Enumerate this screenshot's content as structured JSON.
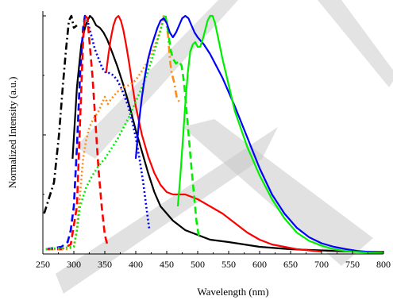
{
  "chart_data": {
    "type": "line",
    "xlabel": "Wavelength (nm)",
    "ylabel": "Normalized Intensity (a.u.)",
    "xlim": [
      250,
      800
    ],
    "ylim": [
      0,
      1.02
    ],
    "x_ticks": [
      250,
      300,
      350,
      400,
      450,
      500,
      550,
      600,
      650,
      700,
      750,
      800
    ],
    "y_ticks": [
      0,
      0.5,
      1.0
    ],
    "grid": false,
    "legend": "none",
    "series": [
      {
        "color": "#000000",
        "style": "dashdot",
        "x": [
          252,
          268,
          276,
          282,
          287,
          292,
          296,
          300,
          305
        ],
        "y": [
          0.17,
          0.3,
          0.5,
          0.7,
          0.85,
          0.98,
          1.0,
          0.95,
          0.96
        ]
      },
      {
        "color": "#000000",
        "style": "solid",
        "x": [
          298,
          305,
          312,
          318,
          322,
          326,
          330,
          336,
          342,
          348,
          354,
          360,
          370,
          380,
          390,
          400,
          410,
          420,
          430,
          440,
          460,
          480,
          500,
          520,
          550,
          600,
          650,
          700,
          750,
          800
        ],
        "y": [
          0.4,
          0.7,
          0.88,
          0.95,
          0.98,
          1.0,
          0.99,
          0.96,
          0.95,
          0.93,
          0.9,
          0.86,
          0.79,
          0.71,
          0.62,
          0.52,
          0.43,
          0.34,
          0.26,
          0.2,
          0.14,
          0.1,
          0.08,
          0.06,
          0.05,
          0.03,
          0.02,
          0.015,
          0.01,
          0.008
        ]
      },
      {
        "color": "#0000ff",
        "style": "dashed",
        "x": [
          255,
          280,
          290,
          295,
          300,
          305,
          310,
          315,
          318,
          320
        ],
        "y": [
          0.02,
          0.03,
          0.05,
          0.1,
          0.2,
          0.45,
          0.75,
          0.95,
          1.0,
          0.98
        ]
      },
      {
        "color": "#0000ff",
        "style": "dotted",
        "x": [
          318,
          322,
          326,
          330,
          334,
          340,
          346,
          352,
          358,
          364,
          370,
          376,
          382,
          388,
          394,
          400,
          406,
          412,
          418,
          422
        ],
        "y": [
          1.0,
          0.98,
          0.94,
          0.9,
          0.86,
          0.82,
          0.78,
          0.76,
          0.76,
          0.75,
          0.73,
          0.7,
          0.66,
          0.62,
          0.56,
          0.49,
          0.4,
          0.3,
          0.18,
          0.1
        ]
      },
      {
        "color": "#ff0000",
        "style": "dashed",
        "x": [
          255,
          280,
          295,
          305,
          310,
          315,
          318,
          322,
          325,
          330,
          335,
          340,
          345,
          350,
          355
        ],
        "y": [
          0.02,
          0.02,
          0.04,
          0.2,
          0.55,
          0.9,
          1.0,
          0.99,
          0.9,
          0.75,
          0.55,
          0.35,
          0.2,
          0.08,
          0.03
        ]
      },
      {
        "color": "#ff0000",
        "style": "solid",
        "x": [
          352,
          356,
          360,
          364,
          368,
          372,
          376,
          380,
          385,
          390,
          395,
          400,
          410,
          420,
          430,
          440,
          450,
          460,
          470,
          480,
          490,
          500,
          520,
          540,
          560,
          580,
          600,
          620,
          640,
          660,
          680,
          700
        ],
        "y": [
          0.76,
          0.84,
          0.91,
          0.96,
          0.99,
          1.0,
          0.98,
          0.94,
          0.87,
          0.79,
          0.7,
          0.62,
          0.5,
          0.41,
          0.34,
          0.29,
          0.26,
          0.25,
          0.25,
          0.25,
          0.24,
          0.23,
          0.2,
          0.17,
          0.13,
          0.09,
          0.06,
          0.04,
          0.03,
          0.02,
          0.015,
          0.01
        ]
      },
      {
        "color": "#ff8c1a",
        "style": "dotted",
        "x": [
          255,
          290,
          300,
          305,
          310,
          315,
          320,
          325,
          330,
          335,
          340,
          345,
          350,
          355,
          360,
          370,
          380,
          390,
          400,
          410,
          420,
          430,
          440,
          445,
          448
        ],
        "y": [
          0.02,
          0.02,
          0.03,
          0.1,
          0.25,
          0.4,
          0.48,
          0.53,
          0.56,
          0.58,
          0.6,
          0.63,
          0.66,
          0.63,
          0.65,
          0.68,
          0.7,
          0.71,
          0.73,
          0.77,
          0.81,
          0.87,
          0.94,
          1.0,
          1.0
        ]
      },
      {
        "color": "#ff8c1a",
        "style": "dashdot",
        "x": [
          448,
          452,
          455,
          458,
          462,
          466,
          470
        ],
        "y": [
          1.0,
          0.92,
          0.82,
          0.76,
          0.72,
          0.66,
          0.64
        ]
      },
      {
        "color": "#00ee00",
        "style": "dotted",
        "x": [
          255,
          300,
          305,
          310,
          320,
          330,
          340,
          350,
          360,
          370,
          380,
          390,
          400,
          410,
          420,
          430,
          440,
          445,
          448
        ],
        "y": [
          0.02,
          0.03,
          0.1,
          0.2,
          0.28,
          0.33,
          0.37,
          0.4,
          0.44,
          0.48,
          0.53,
          0.58,
          0.64,
          0.7,
          0.77,
          0.85,
          0.94,
          0.99,
          1.0
        ]
      },
      {
        "color": "#00ee00",
        "style": "dashed",
        "x": [
          448,
          452,
          456,
          460,
          465,
          470,
          474,
          478,
          482,
          486,
          490,
          494,
          498,
          502
        ],
        "y": [
          1.0,
          0.94,
          0.86,
          0.82,
          0.8,
          0.81,
          0.79,
          0.72,
          0.6,
          0.48,
          0.36,
          0.25,
          0.14,
          0.07
        ]
      },
      {
        "color": "#0000ff",
        "style": "solid",
        "x": [
          400,
          405,
          410,
          415,
          420,
          425,
          430,
          435,
          440,
          445,
          450,
          455,
          460,
          465,
          470,
          475,
          480,
          485,
          490,
          495,
          500,
          510,
          520,
          540,
          560,
          580,
          600,
          620,
          640,
          660,
          680,
          700,
          720,
          740,
          760,
          780,
          800
        ],
        "y": [
          0.4,
          0.55,
          0.66,
          0.75,
          0.82,
          0.87,
          0.91,
          0.95,
          0.98,
          0.99,
          0.97,
          0.93,
          0.91,
          0.93,
          0.96,
          0.99,
          1.0,
          0.99,
          0.96,
          0.93,
          0.91,
          0.88,
          0.84,
          0.74,
          0.62,
          0.49,
          0.36,
          0.25,
          0.17,
          0.11,
          0.07,
          0.045,
          0.03,
          0.02,
          0.012,
          0.008,
          0.005
        ]
      },
      {
        "color": "#00ee00",
        "style": "solid",
        "x": [
          468,
          472,
          476,
          480,
          484,
          488,
          492,
          496,
          500,
          504,
          508,
          512,
          516,
          520,
          524,
          528,
          532,
          540,
          550,
          560,
          580,
          600,
          620,
          640,
          660,
          680,
          700,
          720,
          740,
          760,
          780,
          800
        ],
        "y": [
          0.2,
          0.33,
          0.48,
          0.63,
          0.76,
          0.85,
          0.88,
          0.89,
          0.87,
          0.87,
          0.9,
          0.94,
          0.98,
          1.0,
          1.0,
          0.97,
          0.92,
          0.82,
          0.71,
          0.6,
          0.45,
          0.33,
          0.23,
          0.15,
          0.09,
          0.055,
          0.035,
          0.02,
          0.012,
          0.008,
          0.005,
          0.004
        ]
      }
    ]
  },
  "watermark": {
    "color": "#c8c8c8"
  }
}
